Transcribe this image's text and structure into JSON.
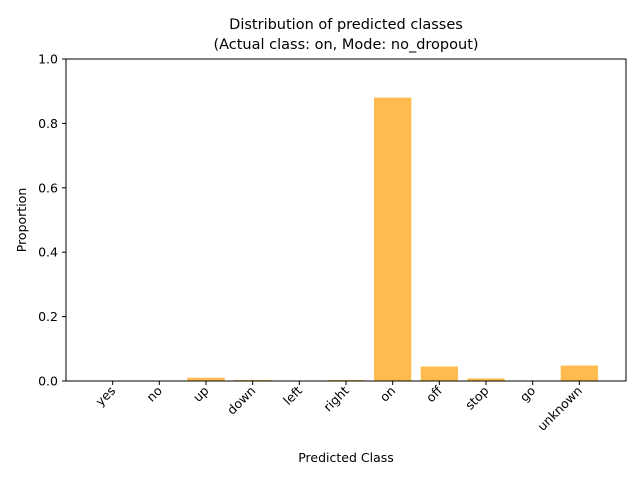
{
  "chart_data": {
    "type": "bar",
    "title": "Distribution of predicted classes",
    "subtitle": "(Actual class: on, Mode: no_dropout)",
    "xlabel": "Predicted Class",
    "ylabel": "Proportion",
    "categories": [
      "yes",
      "no",
      "up",
      "down",
      "left",
      "right",
      "on",
      "off",
      "stop",
      "go",
      "unknown"
    ],
    "values": [
      0.0,
      0.0,
      0.01,
      0.003,
      0.0,
      0.003,
      0.88,
      0.045,
      0.008,
      0.0,
      0.048
    ],
    "ylim": [
      0,
      1.0
    ],
    "yticks": [
      0.0,
      0.2,
      0.4,
      0.6,
      0.8,
      1.0
    ],
    "ytick_labels": [
      "0.0",
      "0.2",
      "0.4",
      "0.6",
      "0.8",
      "1.0"
    ],
    "bar_color": "#ffbb4d",
    "grid": false,
    "legend": false
  }
}
